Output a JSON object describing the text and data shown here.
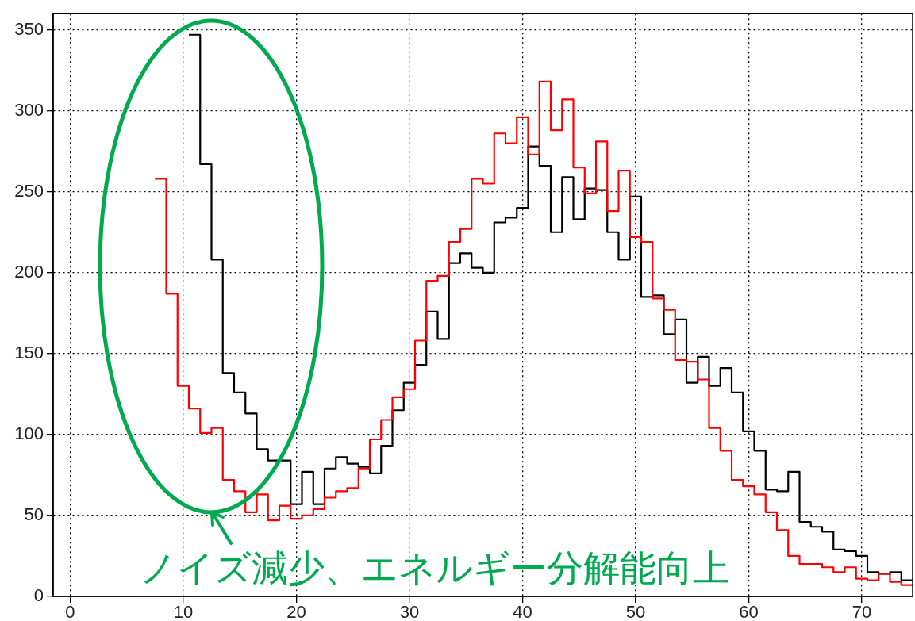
{
  "chart_data": {
    "type": "histogram",
    "bins": [
      7.5,
      8.5,
      9.5,
      10.5,
      11.5,
      12.5,
      13.5,
      14.5,
      15.5,
      16.5,
      17.5,
      18.5,
      19.5,
      20.5,
      21.5,
      22.5,
      23.5,
      24.5,
      25.5,
      26.5,
      27.5,
      28.5,
      29.5,
      30.5,
      31.5,
      32.5,
      33.5,
      34.5,
      35.5,
      36.5,
      37.5,
      38.5,
      39.5,
      40.5,
      41.5,
      42.5,
      43.5,
      44.5,
      45.5,
      46.5,
      47.5,
      48.5,
      49.5,
      50.5,
      51.5,
      52.5,
      53.5,
      54.5,
      55.5,
      56.5,
      57.5,
      58.5,
      59.5,
      60.5,
      61.5,
      62.5,
      63.5,
      64.5,
      65.5,
      66.5,
      67.5,
      68.5,
      69.5,
      70.5,
      71.5,
      72.5,
      73.5,
      74.5
    ],
    "series": [
      {
        "color": "#ff0000",
        "values": [
          258,
          187,
          130,
          116,
          101,
          104,
          72,
          65,
          52,
          63,
          47,
          56,
          48,
          50,
          54,
          61,
          65,
          67,
          79,
          97,
          109,
          123,
          128,
          158,
          195,
          198,
          219,
          227,
          258,
          255,
          286,
          280,
          296,
          273,
          318,
          288,
          307,
          265,
          249,
          281,
          238,
          263,
          222,
          219,
          184,
          177,
          146,
          145,
          134,
          104,
          90,
          72,
          68,
          63,
          52,
          41,
          25,
          20,
          20,
          18,
          15,
          18,
          11,
          10,
          14,
          9,
          7
        ]
      },
      {
        "color": "#000000",
        "bins": [
          10.5,
          11.5,
          12.5,
          13.5,
          14.5,
          15.5,
          16.5,
          17.5,
          18.5,
          19.5,
          20.5,
          21.5,
          22.5,
          23.5,
          24.5,
          25.5,
          26.5,
          27.5,
          28.5,
          29.5,
          30.5,
          31.5,
          32.5,
          33.5,
          34.5,
          35.5,
          36.5,
          37.5,
          38.5,
          39.5,
          40.5,
          41.5,
          42.5,
          43.5,
          44.5,
          45.5,
          46.5,
          47.5,
          48.5,
          49.5,
          50.5,
          51.5,
          52.5,
          53.5,
          54.5,
          55.5,
          56.5,
          57.5,
          58.5,
          59.5,
          60.5,
          61.5,
          62.5,
          63.5,
          64.5,
          65.5,
          66.5,
          67.5,
          68.5,
          69.5,
          70.5,
          71.5,
          72.5,
          73.5,
          74.5
        ],
        "values": [
          347,
          267,
          208,
          138,
          126,
          113,
          91,
          84,
          84,
          57,
          77,
          57,
          79,
          86,
          82,
          80,
          76,
          93,
          115,
          132,
          143,
          176,
          159,
          206,
          212,
          203,
          200,
          231,
          234,
          240,
          278,
          266,
          225,
          259,
          233,
          252,
          251,
          225,
          208,
          247,
          185,
          186,
          162,
          171,
          132,
          148,
          130,
          141,
          126,
          102,
          90,
          66,
          65,
          77,
          46,
          43,
          40,
          29,
          28,
          25,
          15,
          14,
          15,
          10
        ]
      }
    ],
    "xlim": [
      -1.5,
      74.5
    ],
    "ylim": [
      0,
      360
    ],
    "xticks": [
      0,
      10,
      20,
      30,
      40,
      50,
      60,
      70
    ],
    "yticks": [
      0,
      50,
      100,
      150,
      200,
      250,
      300,
      350
    ],
    "grid": true,
    "annotations": [
      "ノイズ減少、エネルギー分解能向上"
    ]
  }
}
